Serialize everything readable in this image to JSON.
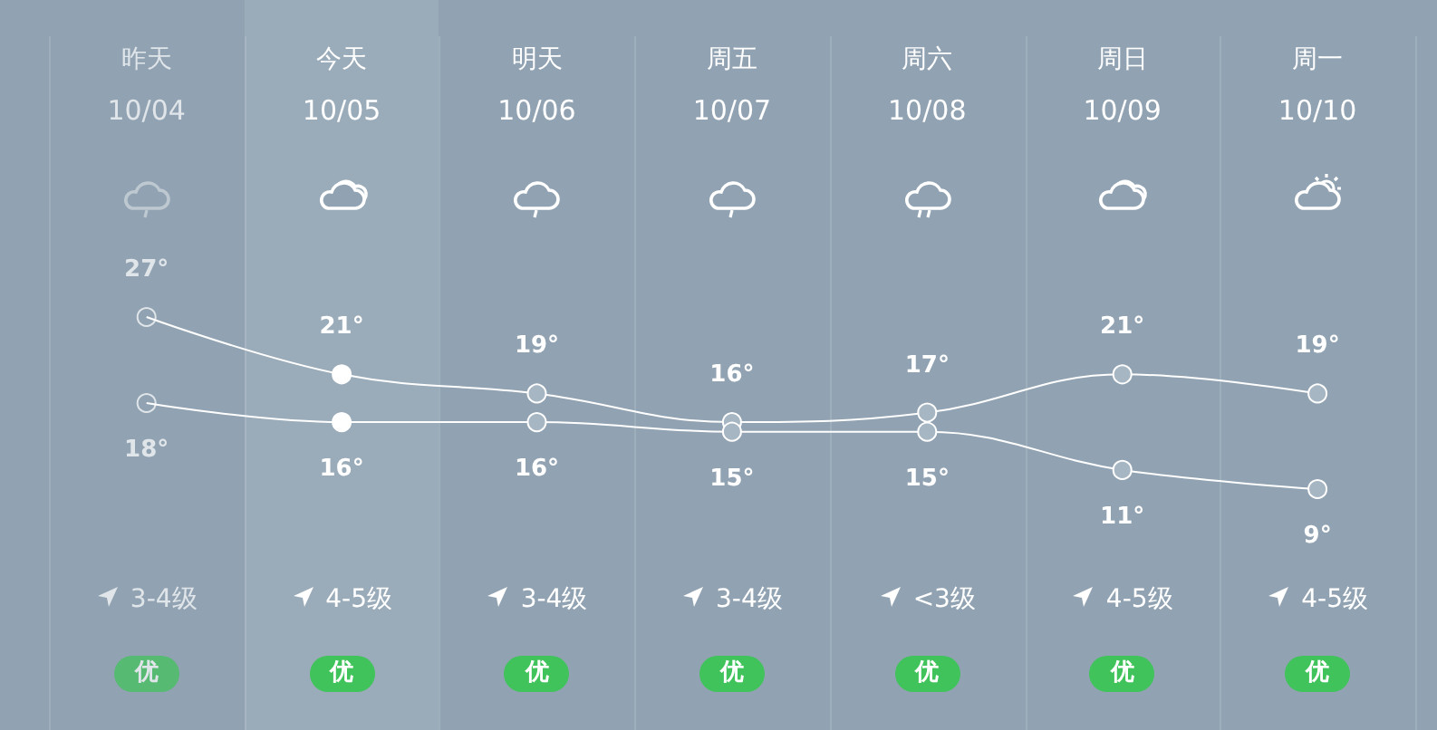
{
  "chart_data": {
    "type": "line",
    "categories": [
      "昨天",
      "今天",
      "明天",
      "周五",
      "周六",
      "周日",
      "周一"
    ],
    "series": [
      {
        "color": "#ffffff",
        "values": [
          27,
          21,
          19,
          16,
          17,
          21,
          19
        ],
        "value_labels": [
          "27°",
          "21°",
          "19°",
          "16°",
          "17°",
          "21°",
          "19°"
        ]
      },
      {
        "color": "#ffffff",
        "values": [
          18,
          16,
          16,
          15,
          15,
          11,
          9
        ],
        "value_labels": [
          "18°",
          "16°",
          "16°",
          "15°",
          "15°",
          "11°",
          "9°"
        ]
      }
    ],
    "marker": "circle",
    "annotations": [
      "10/04",
      "10/05",
      "10/06",
      "10/07",
      "10/08",
      "10/09",
      "10/10",
      "3-4级",
      "4-5级",
      "3-4级",
      "3-4级",
      "<3级",
      "4-5级",
      "4-5级",
      "优",
      "优",
      "优",
      "优",
      "优",
      "优",
      "优"
    ]
  }
}
